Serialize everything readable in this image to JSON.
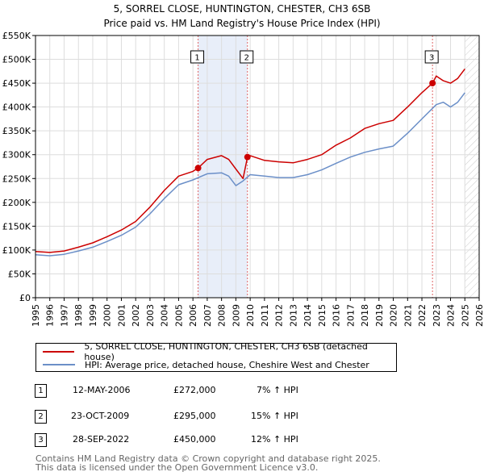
{
  "title_line1": "5, SORREL CLOSE, HUNTINGTON, CHESTER, CH3 6SB",
  "title_line2": "Price paid vs. HM Land Registry's House Price Index (HPI)",
  "colors": {
    "property": "#cc0000",
    "hpi": "#6b8fc8",
    "shade": "#e8eef9",
    "grid": "#dddddd",
    "vline": "#e06666"
  },
  "chart_data": {
    "type": "line",
    "xlim": [
      1995,
      2026
    ],
    "ylim": [
      0,
      550000
    ],
    "y_ticks": [
      0,
      50000,
      100000,
      150000,
      200000,
      250000,
      300000,
      350000,
      400000,
      450000,
      500000,
      550000
    ],
    "y_tick_labels": [
      "£0",
      "£50K",
      "£100K",
      "£150K",
      "£200K",
      "£250K",
      "£300K",
      "£350K",
      "£400K",
      "£450K",
      "£500K",
      "£550K"
    ],
    "x_ticks": [
      1995,
      1996,
      1997,
      1998,
      1999,
      2000,
      2001,
      2002,
      2003,
      2004,
      2005,
      2006,
      2007,
      2008,
      2009,
      2010,
      2011,
      2012,
      2013,
      2014,
      2015,
      2016,
      2017,
      2018,
      2019,
      2020,
      2021,
      2022,
      2023,
      2024,
      2025,
      2026
    ],
    "x_tick_labels": [
      "1995",
      "1996",
      "1997",
      "1998",
      "1999",
      "2000",
      "2001",
      "2002",
      "2003",
      "2004",
      "2005",
      "2006",
      "2007",
      "2008",
      "2009",
      "2010",
      "2011",
      "2012",
      "2013",
      "2014",
      "2015",
      "2016",
      "2017",
      "2018",
      "2019",
      "2020",
      "2021",
      "2022",
      "2023",
      "2024",
      "2025",
      "2026"
    ],
    "shaded_ranges": [
      [
        2006.36,
        2009.81
      ]
    ],
    "future_hatch_from": 2025.0,
    "series": [
      {
        "name": "5, SORREL CLOSE, HUNTINGTON, CHESTER, CH3 6SB (detached house)",
        "color": "#cc0000",
        "x": [
          1995,
          1996,
          1997,
          1998,
          1999,
          2000,
          2001,
          2002,
          2003,
          2004,
          2005,
          2006,
          2006.36,
          2007,
          2008,
          2008.5,
          2009,
          2009.5,
          2009.81,
          2010,
          2011,
          2012,
          2013,
          2014,
          2015,
          2016,
          2017,
          2018,
          2019,
          2020,
          2021,
          2022,
          2022.74,
          2023,
          2023.5,
          2024,
          2024.5,
          2025
        ],
        "y": [
          97000,
          95000,
          98000,
          106000,
          115000,
          128000,
          142000,
          160000,
          190000,
          225000,
          255000,
          265000,
          272000,
          290000,
          298000,
          290000,
          270000,
          250000,
          295000,
          298000,
          288000,
          285000,
          283000,
          290000,
          300000,
          320000,
          335000,
          355000,
          365000,
          372000,
          400000,
          430000,
          450000,
          465000,
          455000,
          450000,
          460000,
          480000
        ]
      },
      {
        "name": "HPI: Average price, detached house, Cheshire West and Chester",
        "color": "#6b8fc8",
        "x": [
          1995,
          1996,
          1997,
          1998,
          1999,
          2000,
          2001,
          2002,
          2003,
          2004,
          2005,
          2006,
          2007,
          2008,
          2008.5,
          2009,
          2009.5,
          2010,
          2011,
          2012,
          2013,
          2014,
          2015,
          2016,
          2017,
          2018,
          2019,
          2020,
          2021,
          2022,
          2023,
          2023.5,
          2024,
          2024.5,
          2025
        ],
        "y": [
          90000,
          88000,
          91000,
          98000,
          106000,
          118000,
          131000,
          148000,
          176000,
          208000,
          237000,
          247000,
          260000,
          262000,
          255000,
          235000,
          245000,
          258000,
          255000,
          252000,
          252000,
          258000,
          268000,
          282000,
          295000,
          305000,
          312000,
          318000,
          345000,
          375000,
          405000,
          410000,
          400000,
          410000,
          430000
        ]
      }
    ],
    "sales": [
      {
        "label": "1",
        "x": 2006.36,
        "y": 272000
      },
      {
        "label": "2",
        "x": 2009.81,
        "y": 295000
      },
      {
        "label": "3",
        "x": 2022.74,
        "y": 450000
      }
    ]
  },
  "legend": {
    "property_label": "5, SORREL CLOSE, HUNTINGTON, CHESTER, CH3 6SB (detached house)",
    "hpi_label": "HPI: Average price, detached house, Cheshire West and Chester"
  },
  "transactions": [
    {
      "num": "1",
      "date": "12-MAY-2006",
      "price": "£272,000",
      "hpi": "7% ↑ HPI"
    },
    {
      "num": "2",
      "date": "23-OCT-2009",
      "price": "£295,000",
      "hpi": "15% ↑ HPI"
    },
    {
      "num": "3",
      "date": "28-SEP-2022",
      "price": "£450,000",
      "hpi": "12% ↑ HPI"
    }
  ],
  "footer_line1": "Contains HM Land Registry data © Crown copyright and database right 2025.",
  "footer_line2": "This data is licensed under the Open Government Licence v3.0."
}
